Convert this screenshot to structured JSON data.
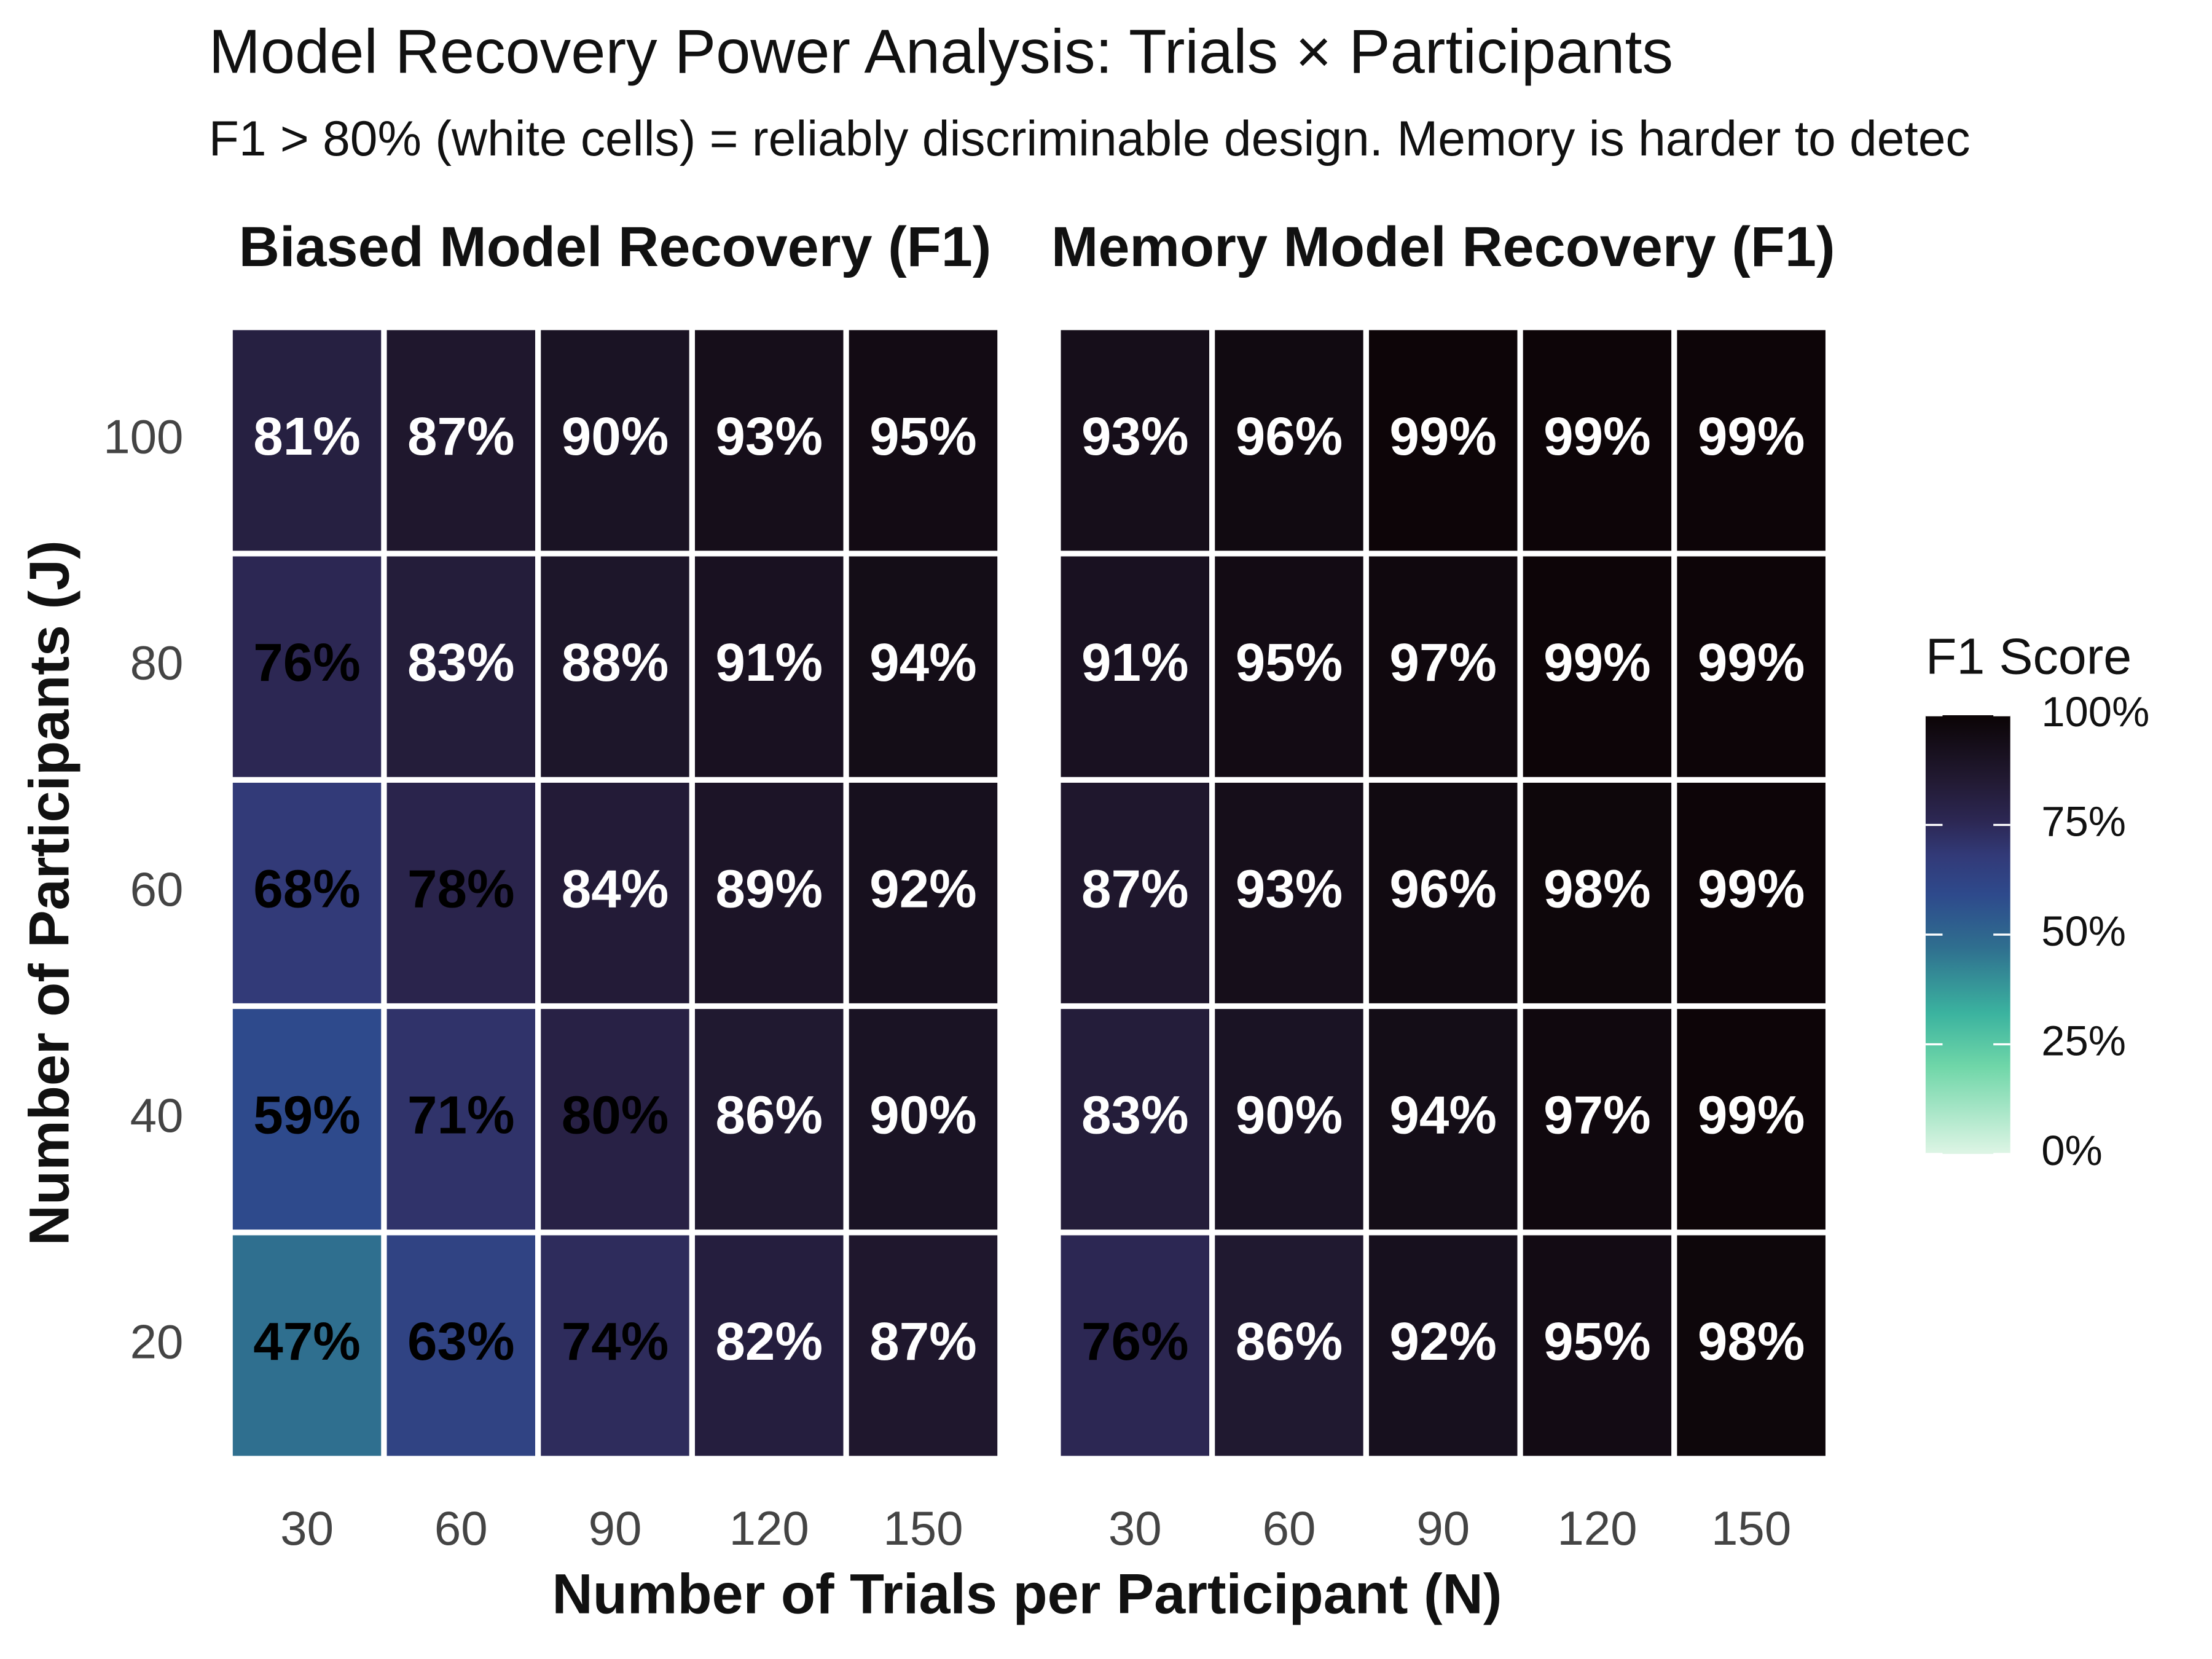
{
  "title": "Model Recovery Power Analysis: Trials × Participants",
  "subtitle": "F1 > 80% (white cells) = reliably discriminable design. Memory is harder to detec",
  "x_label": "Number of Trials per Participant (N)",
  "y_label": "Number of Participants (J)",
  "label_white_above": 80,
  "colorbar": {
    "title": "F1 Score",
    "lim": [
      0,
      100
    ],
    "ticks": [
      {
        "value": 0,
        "label": "0%"
      },
      {
        "value": 25,
        "label": "25%"
      },
      {
        "value": 50,
        "label": "50%"
      },
      {
        "value": 75,
        "label": "75%"
      },
      {
        "value": 100,
        "label": "100%"
      }
    ],
    "stops": [
      0,
      20,
      32,
      47,
      59,
      68,
      76,
      85,
      100
    ],
    "colors": [
      "#def5e5",
      "#6fd6a8",
      "#3bb39f",
      "#2f6f8f",
      "#2e4a8c",
      "#323a78",
      "#2c2753",
      "#221a33",
      "#0b0405"
    ]
  },
  "chart_data": [
    {
      "type": "heatmap",
      "title": "Biased Model Recovery (F1)",
      "x": [
        30,
        60,
        90,
        120,
        150
      ],
      "y": [
        20,
        40,
        60,
        80,
        100
      ],
      "values": [
        [
          47,
          63,
          74,
          82,
          87
        ],
        [
          59,
          71,
          80,
          86,
          90
        ],
        [
          68,
          78,
          84,
          89,
          92
        ],
        [
          76,
          83,
          88,
          91,
          94
        ],
        [
          81,
          87,
          90,
          93,
          95
        ]
      ],
      "value_labels": [
        [
          "47%",
          "63%",
          "74%",
          "82%",
          "87%"
        ],
        [
          "59%",
          "71%",
          "80%",
          "86%",
          "90%"
        ],
        [
          "68%",
          "78%",
          "84%",
          "89%",
          "92%"
        ],
        [
          "76%",
          "83%",
          "88%",
          "91%",
          "94%"
        ],
        [
          "81%",
          "87%",
          "90%",
          "93%",
          "95%"
        ]
      ]
    },
    {
      "type": "heatmap",
      "title": "Memory Model Recovery (F1)",
      "x": [
        30,
        60,
        90,
        120,
        150
      ],
      "y": [
        20,
        40,
        60,
        80,
        100
      ],
      "values": [
        [
          76,
          86,
          92,
          95,
          98
        ],
        [
          83,
          90,
          94,
          97,
          99
        ],
        [
          87,
          93,
          96,
          98,
          99
        ],
        [
          91,
          95,
          97,
          99,
          99
        ],
        [
          93,
          96,
          99,
          99,
          99
        ]
      ],
      "value_labels": [
        [
          "76%",
          "86%",
          "92%",
          "95%",
          "98%"
        ],
        [
          "83%",
          "90%",
          "94%",
          "97%",
          "99%"
        ],
        [
          "87%",
          "93%",
          "96%",
          "98%",
          "99%"
        ],
        [
          "91%",
          "95%",
          "97%",
          "99%",
          "99%"
        ],
        [
          "93%",
          "96%",
          "99%",
          "99%",
          "99%"
        ]
      ]
    }
  ]
}
